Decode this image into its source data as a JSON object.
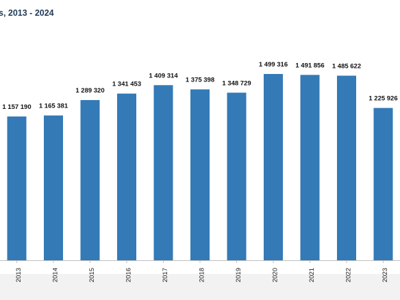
{
  "chart_data": {
    "type": "bar",
    "title": "s, 2013 - 2024",
    "categories": [
      "2013",
      "2014",
      "2015",
      "2016",
      "2017",
      "2018",
      "2019",
      "2020",
      "2021",
      "2022",
      "2023"
    ],
    "values": [
      1157190,
      1165381,
      1289320,
      1341453,
      1409314,
      1375398,
      1348729,
      1499316,
      1491856,
      1485622,
      1225926
    ],
    "data_labels": [
      "1 157 190",
      "1 165 381",
      "1 289 320",
      "1 341 453",
      "1 409 314",
      "1 375 398",
      "1 348 729",
      "1 499 316",
      "1 491 856",
      "1 485 622",
      "1 225 926"
    ],
    "ylim": [
      0,
      1499316
    ],
    "bar_color": "#337ab7",
    "grid": false,
    "legend": "none"
  }
}
